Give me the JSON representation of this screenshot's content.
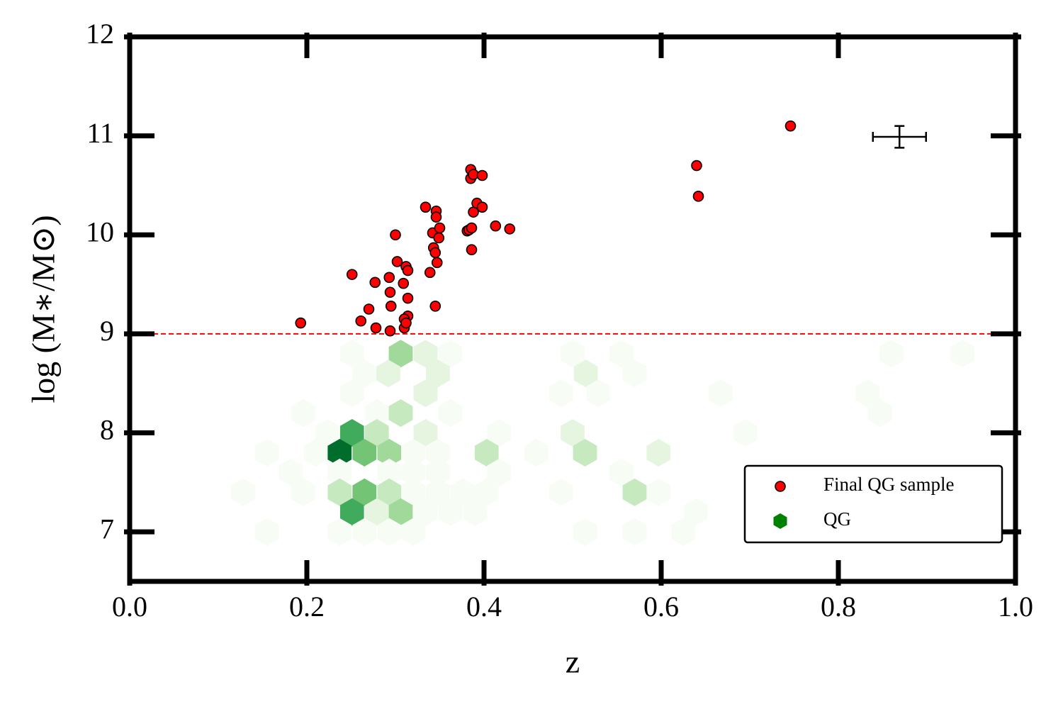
{
  "chart_data": {
    "type": "scatter",
    "xlabel": "z",
    "ylabel": "log (M∗/M⊙)",
    "xlim": [
      0,
      1
    ],
    "ylim": [
      6.5,
      12
    ],
    "xticks": [
      {
        "value": 0,
        "label": "0.0"
      },
      0.2,
      0.4,
      0.6,
      0.8,
      {
        "value": 1,
        "label": "1.0"
      }
    ],
    "yticks": [
      7,
      8,
      9,
      10,
      11,
      12
    ],
    "legend": "lower right",
    "series": [
      {
        "name": "Final QG sample",
        "color": "#ff0000",
        "x": [
          0.193,
          0.251,
          0.261,
          0.27,
          0.277,
          0.278,
          0.293,
          0.294,
          0.295,
          0.294,
          0.3,
          0.302,
          0.309,
          0.312,
          0.314,
          0.314,
          0.314,
          0.31,
          0.31,
          0.312,
          0.334,
          0.339,
          0.342,
          0.343,
          0.345,
          0.346,
          0.346,
          0.347,
          0.345,
          0.35,
          0.349,
          0.381,
          0.383,
          0.386,
          0.385,
          0.385,
          0.388,
          0.386,
          0.388,
          0.392,
          0.398,
          0.398,
          0.413,
          0.429,
          0.64,
          0.642,
          0.746
        ],
        "values": [
          9.11,
          9.6,
          9.13,
          9.25,
          9.52,
          9.06,
          9.57,
          9.42,
          9.28,
          9.03,
          10.0,
          9.73,
          9.51,
          9.68,
          9.64,
          9.36,
          9.18,
          9.15,
          9.06,
          9.11,
          10.28,
          9.62,
          10.02,
          9.87,
          9.82,
          10.24,
          10.18,
          9.72,
          9.28,
          10.07,
          9.97,
          10.04,
          10.05,
          10.07,
          10.66,
          10.57,
          10.61,
          9.85,
          10.23,
          10.32,
          10.6,
          10.28,
          10.09,
          10.06,
          10.7,
          10.39,
          11.1
        ]
      }
    ],
    "hexbin": {
      "name": "QG",
      "color": "#008000",
      "cmap": [
        "#f7fcf5",
        "#e5f5e0",
        "#c7e9c0",
        "#a1d99b",
        "#74c476",
        "#41ab5d",
        "#238b45",
        "#006d2c"
      ],
      "x": [
        0.251,
        0.306,
        0.334,
        0.362,
        0.5,
        0.555,
        0.86,
        0.94,
        0.265,
        0.292,
        0.348,
        0.515,
        0.57,
        0.251,
        0.334,
        0.487,
        0.529,
        0.667,
        0.833,
        0.196,
        0.279,
        0.306,
        0.362,
        0.847,
        0.223,
        0.251,
        0.279,
        0.334,
        0.417,
        0.5,
        0.695,
        0.155,
        0.21,
        0.237,
        0.265,
        0.293,
        0.32,
        0.348,
        0.403,
        0.459,
        0.514,
        0.597,
        0.182,
        0.237,
        0.293,
        0.32,
        0.348,
        0.417,
        0.555,
        0.128,
        0.196,
        0.237,
        0.265,
        0.293,
        0.32,
        0.348,
        0.376,
        0.403,
        0.487,
        0.57,
        0.597,
        0.251,
        0.279,
        0.306,
        0.334,
        0.362,
        0.39,
        0.639,
        0.155,
        0.237,
        0.265,
        0.293,
        0.32,
        0.514,
        0.57,
        0.625
      ],
      "y": [
        8.8,
        8.8,
        8.8,
        8.8,
        8.8,
        8.8,
        8.8,
        8.8,
        8.6,
        8.6,
        8.6,
        8.6,
        8.6,
        8.4,
        8.4,
        8.4,
        8.4,
        8.4,
        8.4,
        8.2,
        8.2,
        8.2,
        8.2,
        8.2,
        8.0,
        8.0,
        8.0,
        8.0,
        8.0,
        8.0,
        8.0,
        7.8,
        7.8,
        7.8,
        7.8,
        7.8,
        7.8,
        7.8,
        7.8,
        7.8,
        7.8,
        7.8,
        7.6,
        7.6,
        7.6,
        7.6,
        7.6,
        7.6,
        7.6,
        7.4,
        7.4,
        7.4,
        7.4,
        7.4,
        7.4,
        7.4,
        7.4,
        7.4,
        7.4,
        7.4,
        7.4,
        7.2,
        7.2,
        7.2,
        7.2,
        7.2,
        7.2,
        7.2,
        7.0,
        7.0,
        7.0,
        7.0,
        7.0,
        7.0,
        7.0,
        7.0
      ],
      "counts": [
        1,
        4,
        2,
        1,
        1,
        1,
        1,
        1,
        1,
        2,
        2,
        2,
        1,
        1,
        2,
        1,
        1,
        1,
        1,
        1,
        1,
        3,
        1,
        1,
        1,
        6,
        3,
        2,
        1,
        2,
        1,
        1,
        1,
        8,
        5,
        4,
        1,
        1,
        3,
        1,
        3,
        2,
        1,
        1,
        1,
        1,
        1,
        1,
        1,
        1,
        1,
        3,
        5,
        3,
        1,
        1,
        1,
        1,
        1,
        3,
        1,
        6,
        2,
        4,
        1,
        1,
        1,
        1,
        1,
        1,
        1,
        1,
        1,
        1,
        1,
        1
      ]
    },
    "hline": {
      "y": 9,
      "color": "#ff0000"
    },
    "error_bar": {
      "x": 0.869,
      "y": 10.99,
      "xerr": 0.03,
      "yerr": 0.11
    }
  }
}
